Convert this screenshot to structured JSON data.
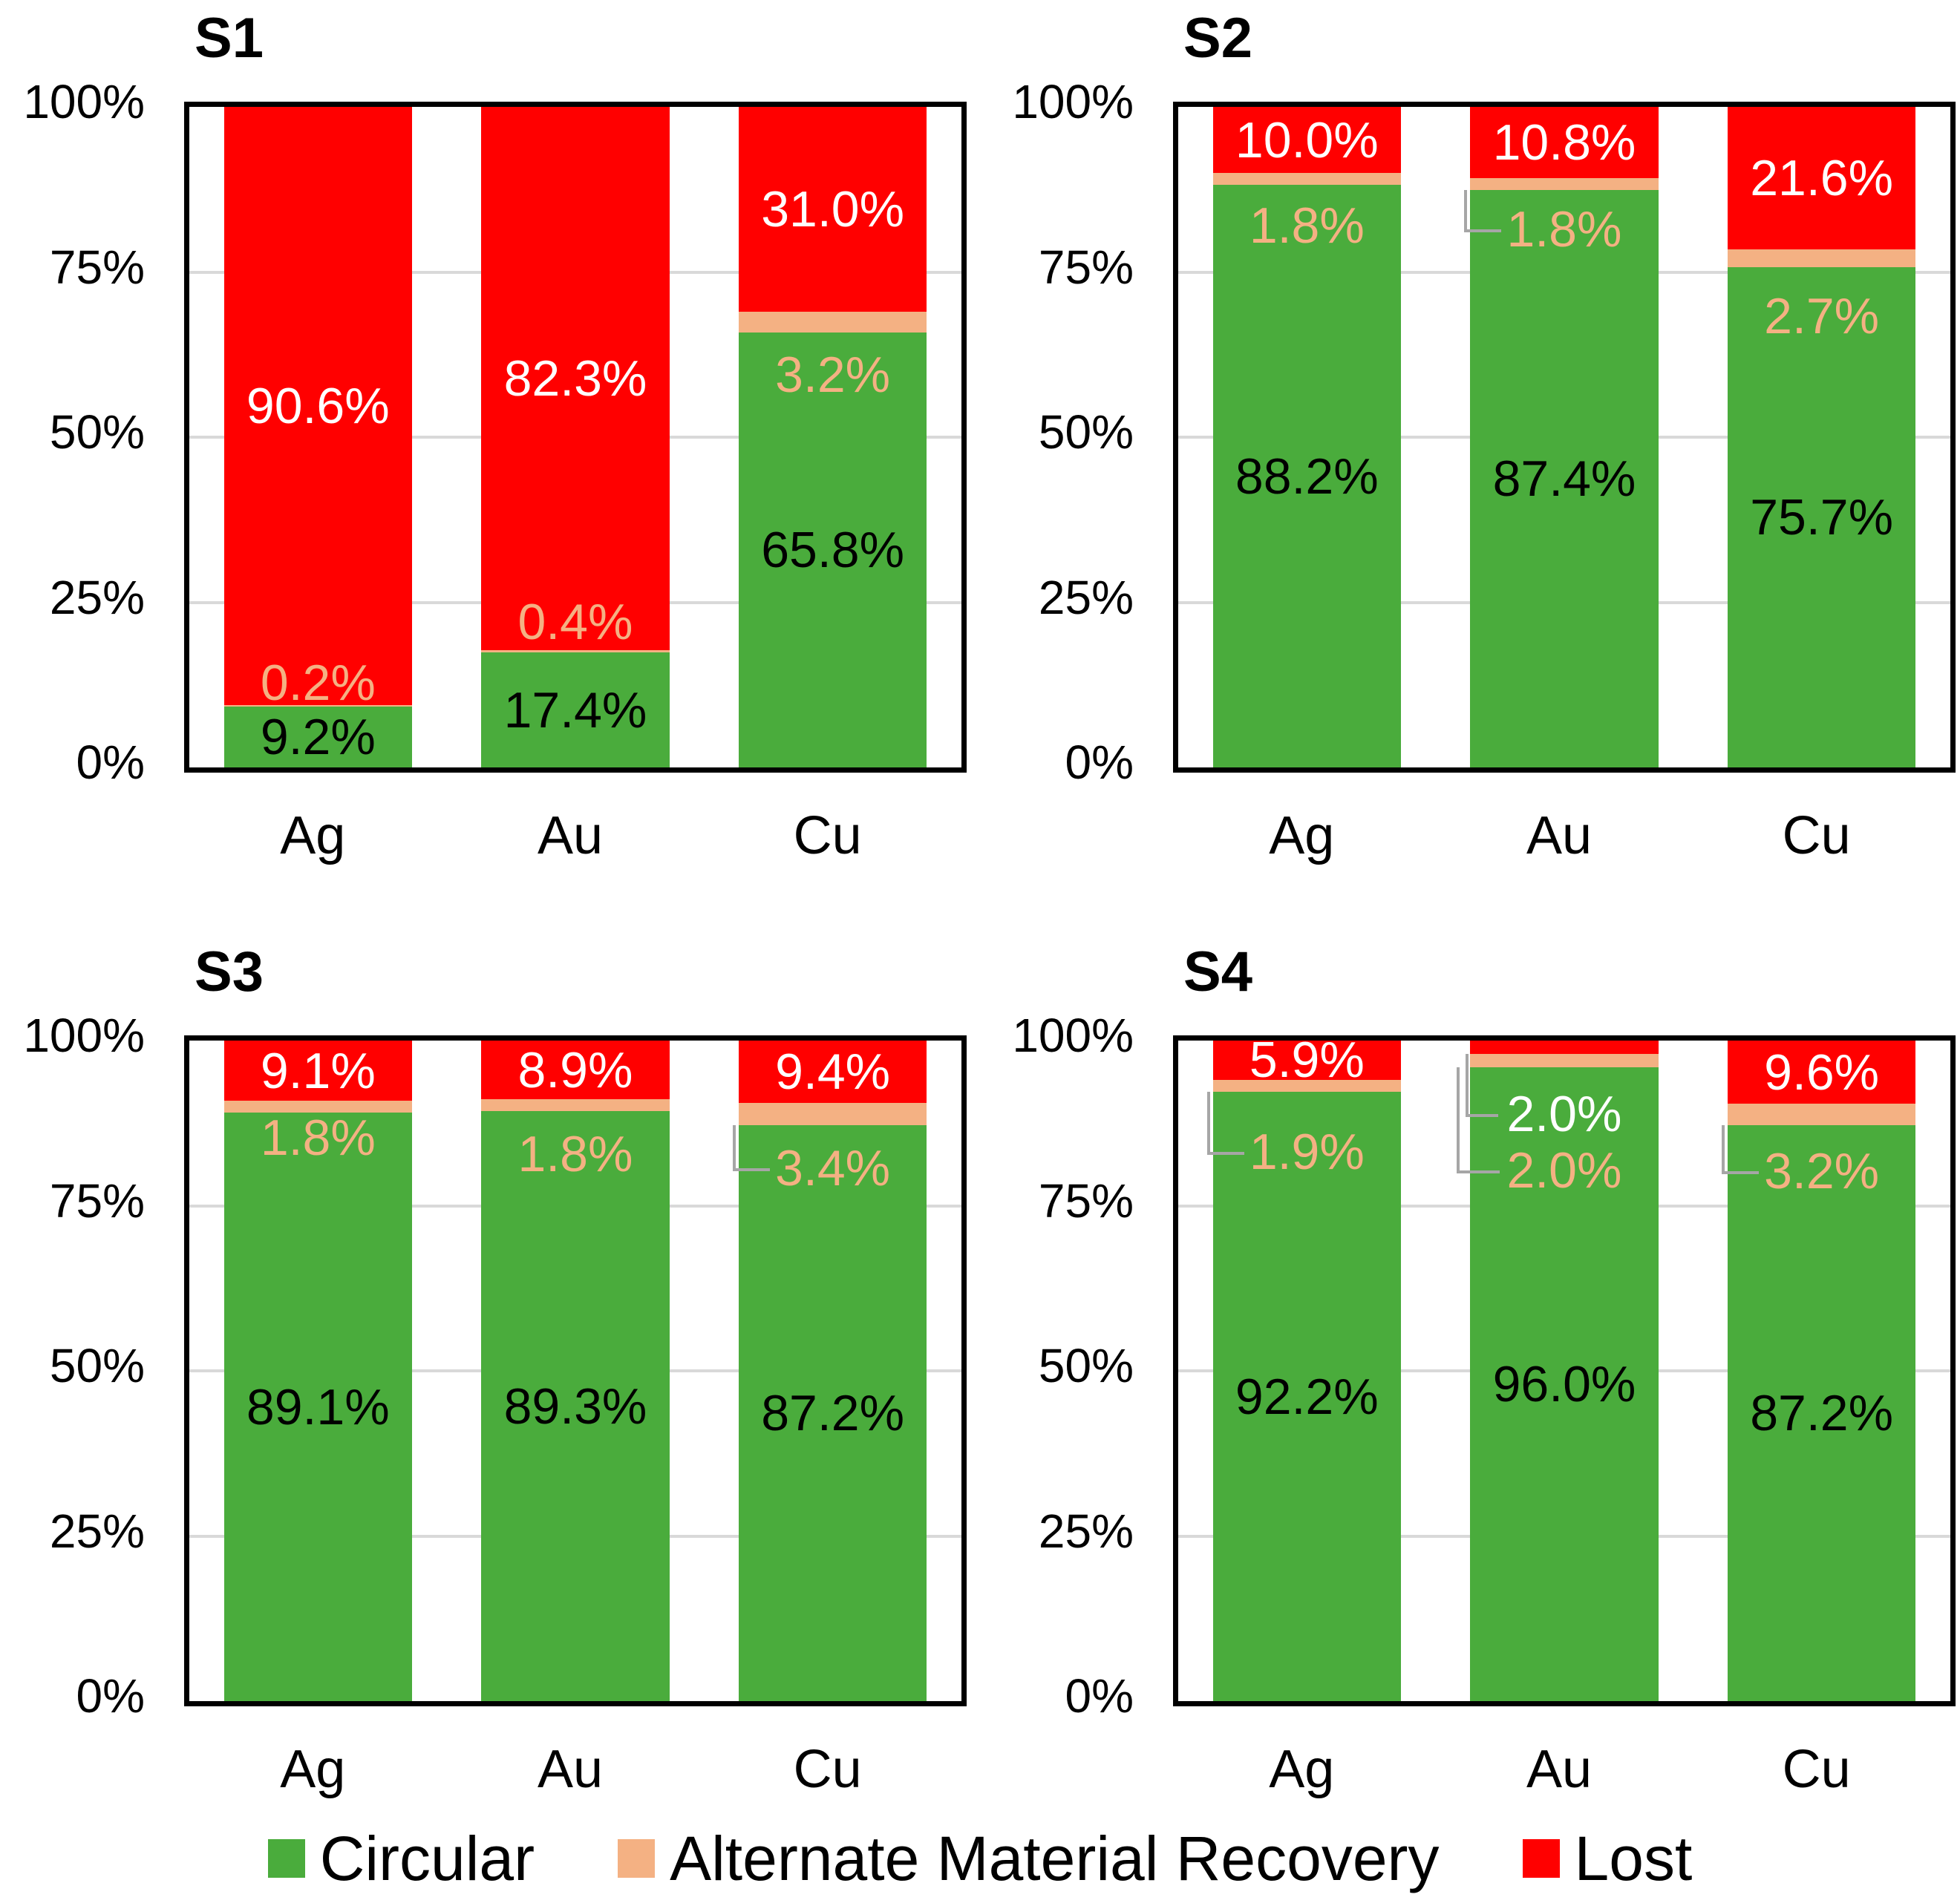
{
  "page": {
    "background": "#FFFFFF"
  },
  "colors": {
    "circular": "#4AAC3C",
    "amr": "#F4B183",
    "lost": "#FF0000",
    "leader_line": "#A6A6A6",
    "gridline": "#D9D9D9",
    "plot_border": "#000000",
    "green_label_text": "#000000",
    "lost_label_text": "#FFFFFF"
  },
  "y_axis_ticks": [
    "100%",
    "75%",
    "50%",
    "25%",
    "0%"
  ],
  "legend": [
    {
      "label": "Circular",
      "color_key": "circular"
    },
    {
      "label": "Alternate Material Recovery",
      "color_key": "amr"
    },
    {
      "label": "Lost",
      "color_key": "lost"
    }
  ],
  "chart_data": [
    {
      "type": "bar",
      "stacked": true,
      "title": "S1",
      "ylim": [
        0,
        100
      ],
      "grid": true,
      "legend_position": "bottom",
      "categories": [
        "Ag",
        "Au",
        "Cu"
      ],
      "series": [
        {
          "name": "Circular",
          "values": [
            9.2,
            17.4,
            65.8
          ],
          "labels": [
            "9.2%",
            "17.4%",
            "65.8%"
          ]
        },
        {
          "name": "Alternate Material Recovery",
          "values": [
            0.2,
            0.4,
            3.2
          ],
          "labels": [
            "0.2%",
            "0.4%",
            "3.2%"
          ]
        },
        {
          "name": "Lost",
          "values": [
            90.6,
            82.3,
            31.0
          ],
          "labels": [
            "90.6%",
            "82.3%",
            "31.0%"
          ]
        }
      ],
      "label_layout": {
        "amr": [
          {
            "at": 12.8,
            "leader": false
          },
          {
            "at": 22.0,
            "leader": false
          },
          {
            "at": 59.4,
            "leader": false
          }
        ],
        "lost": [
          null,
          null,
          null
        ]
      }
    },
    {
      "type": "bar",
      "stacked": true,
      "title": "S2",
      "ylim": [
        0,
        100
      ],
      "grid": true,
      "legend_position": "bottom",
      "categories": [
        "Ag",
        "Au",
        "Cu"
      ],
      "series": [
        {
          "name": "Circular",
          "values": [
            88.2,
            87.4,
            75.7
          ],
          "labels": [
            "88.2%",
            "87.4%",
            "75.7%"
          ]
        },
        {
          "name": "Alternate Material Recovery",
          "values": [
            1.8,
            1.8,
            2.7
          ],
          "labels": [
            "1.8%",
            "1.8%",
            "2.7%"
          ]
        },
        {
          "name": "Lost",
          "values": [
            10.0,
            10.8,
            21.6
          ],
          "labels": [
            "10.0%",
            "10.8%",
            "21.6%"
          ]
        }
      ],
      "label_layout": {
        "amr": [
          {
            "at": 82.0,
            "leader": false
          },
          {
            "at": 81.5,
            "leader": true
          },
          {
            "at": 68.3,
            "leader": false
          }
        ],
        "lost": [
          null,
          null,
          null
        ]
      }
    },
    {
      "type": "bar",
      "stacked": true,
      "title": "S3",
      "ylim": [
        0,
        100
      ],
      "grid": true,
      "legend_position": "bottom",
      "categories": [
        "Ag",
        "Au",
        "Cu"
      ],
      "series": [
        {
          "name": "Circular",
          "values": [
            89.1,
            89.3,
            87.2
          ],
          "labels": [
            "89.1%",
            "89.3%",
            "87.2%"
          ]
        },
        {
          "name": "Alternate Material Recovery",
          "values": [
            1.8,
            1.8,
            3.4
          ],
          "labels": [
            "1.8%",
            "1.8%",
            "3.4%"
          ]
        },
        {
          "name": "Lost",
          "values": [
            9.1,
            8.9,
            9.4
          ],
          "labels": [
            "9.1%",
            "8.9%",
            "9.4%"
          ]
        }
      ],
      "label_layout": {
        "amr": [
          {
            "at": 85.3,
            "leader": false
          },
          {
            "at": 82.8,
            "leader": false
          },
          {
            "at": 80.7,
            "leader": true
          }
        ],
        "lost": [
          null,
          null,
          null
        ]
      }
    },
    {
      "type": "bar",
      "stacked": true,
      "title": "S4",
      "ylim": [
        0,
        100
      ],
      "grid": true,
      "legend_position": "bottom",
      "categories": [
        "Ag",
        "Au",
        "Cu"
      ],
      "series": [
        {
          "name": "Circular",
          "values": [
            92.2,
            96.0,
            87.2
          ],
          "labels": [
            "92.2%",
            "96.0%",
            "87.2%"
          ]
        },
        {
          "name": "Alternate Material Recovery",
          "values": [
            1.9,
            2.0,
            3.2
          ],
          "labels": [
            "1.9%",
            "2.0%",
            "3.2%"
          ]
        },
        {
          "name": "Lost",
          "values": [
            5.9,
            2.0,
            9.6
          ],
          "labels": [
            "5.9%",
            "2.0%",
            "9.6%"
          ]
        }
      ],
      "label_layout": {
        "amr": [
          {
            "at": 83.1,
            "leader": true
          },
          {
            "at": 80.3,
            "leader": true,
            "dx": -18,
            "w": 54
          },
          {
            "at": 80.2,
            "leader": true
          }
        ],
        "lost": [
          null,
          {
            "at": 88.9,
            "leader": true,
            "dx": -6,
            "w": 40
          },
          null
        ]
      }
    }
  ]
}
